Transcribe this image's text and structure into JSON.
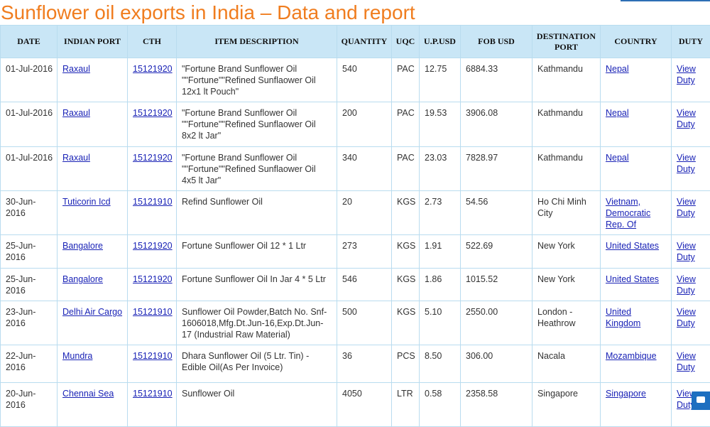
{
  "header": {
    "title": "Sunflower oil exports in India – Data and report"
  },
  "table": {
    "columns": [
      "DATE",
      "INDIAN PORT",
      "CTH",
      "ITEM DESCRIPTION",
      "QUANTITY",
      "UQC",
      "U.P.USD",
      "FOB USD",
      "DESTINATION PORT",
      "COUNTRY",
      "DUTY"
    ],
    "rows": [
      [
        "01-Jul-2016",
        "Raxaul",
        "15121920",
        "\"Fortune Brand Sunflower Oil \"\"Fortune\"\"Refined Sunflaower Oil 12x1 lt Pouch\"",
        "540",
        "PAC",
        "12.75",
        "6884.33",
        "Kathmandu",
        "Nepal",
        "View Duty"
      ],
      [
        "01-Jul-2016",
        "Raxaul",
        "15121920",
        "\"Fortune Brand Sunflower Oil \"\"Fortune\"\"Refined Sunflaower Oil 8x2 lt Jar\"",
        "200",
        "PAC",
        "19.53",
        "3906.08",
        "Kathmandu",
        "Nepal",
        "View Duty"
      ],
      [
        "01-Jul-2016",
        "Raxaul",
        "15121920",
        "\"Fortune Brand Sunflower Oil \"\"Fortune\"\"Refined Sunflaower Oil 4x5 lt Jar\"",
        "340",
        "PAC",
        "23.03",
        "7828.97",
        "Kathmandu",
        "Nepal",
        "View Duty"
      ],
      [
        "30-Jun-2016",
        "Tuticorin Icd",
        "15121910",
        "Refind Sunflower Oil",
        "20",
        "KGS",
        "2.73",
        "54.56",
        "Ho Chi Minh City",
        "Vietnam, Democratic Rep. Of",
        "View Duty"
      ],
      [
        "25-Jun-2016",
        "Bangalore",
        "15121920",
        "Fortune Sunflower Oil 12 * 1 Ltr",
        "273",
        "KGS",
        "1.91",
        "522.69",
        "New York",
        "United States",
        "View Duty"
      ],
      [
        "25-Jun-2016",
        "Bangalore",
        "15121920",
        "Fortune Sunflower Oil In Jar 4 * 5 Ltr",
        "546",
        "KGS",
        "1.86",
        "1015.52",
        "New York",
        "United States",
        "View Duty"
      ],
      [
        "23-Jun-2016",
        "Delhi Air Cargo",
        "15121910",
        "Sunflower Oil Powder,Batch No. Snf-1606018,Mfg.Dt.Jun-16,Exp.Dt.Jun-17 (Industrial Raw Material)",
        "500",
        "KGS",
        "5.10",
        "2550.00",
        "London - Heathrow",
        "United Kingdom",
        "View Duty"
      ],
      [
        "22-Jun-2016",
        "Mundra",
        "15121910",
        "Dhara Sunflower Oil (5 Ltr. Tin) - Edible Oil(As Per Invoice)",
        "36",
        "PCS",
        "8.50",
        "306.00",
        "Nacala",
        "Mozambique",
        "View Duty"
      ],
      [
        "20-Jun-2016",
        "Chennai Sea",
        "15121910",
        "Sunflower Oil",
        "4050",
        "LTR",
        "0.58",
        "2358.58",
        "Singapore",
        "Singapore",
        "View Duty"
      ]
    ]
  }
}
